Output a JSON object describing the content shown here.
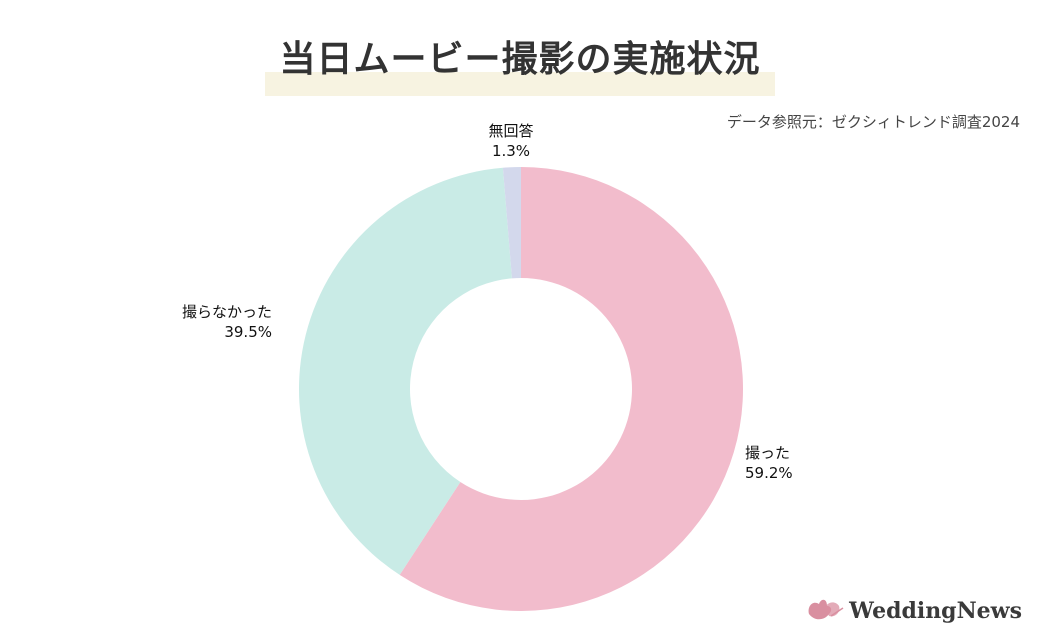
{
  "title": "当日ムービー撮影の実施状況",
  "source": "データ参照元：ゼクシィトレンド調査2024",
  "brand": "WeddingNews",
  "colors": {
    "shot": "#f2bccc",
    "not_shot": "#c9ebe6",
    "no_answer": "#d3d8ec",
    "title_highlight": "#f7f3e1",
    "logo_bird": "#d98fa0"
  },
  "chart_data": {
    "type": "pie",
    "donut": true,
    "title": "当日ムービー撮影の実施状況",
    "slices": [
      {
        "label": "撮った",
        "value": 59.2,
        "value_label": "59.2%"
      },
      {
        "label": "撮らなかった",
        "value": 39.5,
        "value_label": "39.5%"
      },
      {
        "label": "無回答",
        "value": 1.3,
        "value_label": "1.3%"
      }
    ]
  }
}
